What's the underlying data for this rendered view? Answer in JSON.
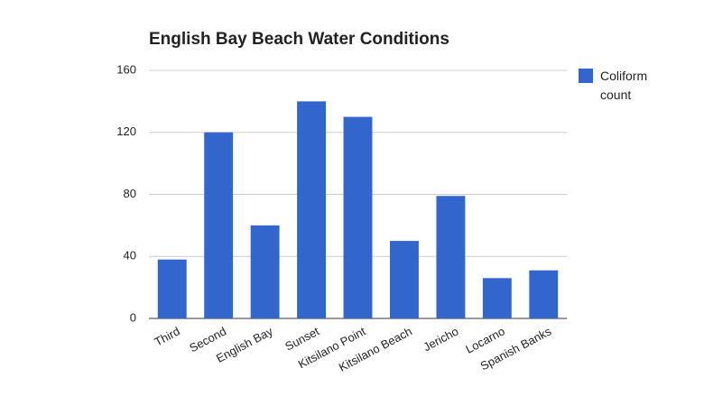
{
  "chart_data": {
    "type": "bar",
    "title": "English Bay Beach Water Conditions",
    "categories": [
      "Third",
      "Second",
      "English Bay",
      "Sunset",
      "Kitsilano Point",
      "Kitsilano Beach",
      "Jericho",
      "Locarno",
      "Spanish Banks"
    ],
    "series": [
      {
        "name": "Coliform count",
        "color": "#3366cc",
        "values": [
          38,
          120,
          60,
          140,
          130,
          50,
          79,
          26,
          31
        ]
      }
    ],
    "ylim": [
      0,
      160
    ],
    "yticks": [
      0,
      40,
      80,
      120,
      160
    ],
    "grid": true,
    "legend": "right"
  }
}
